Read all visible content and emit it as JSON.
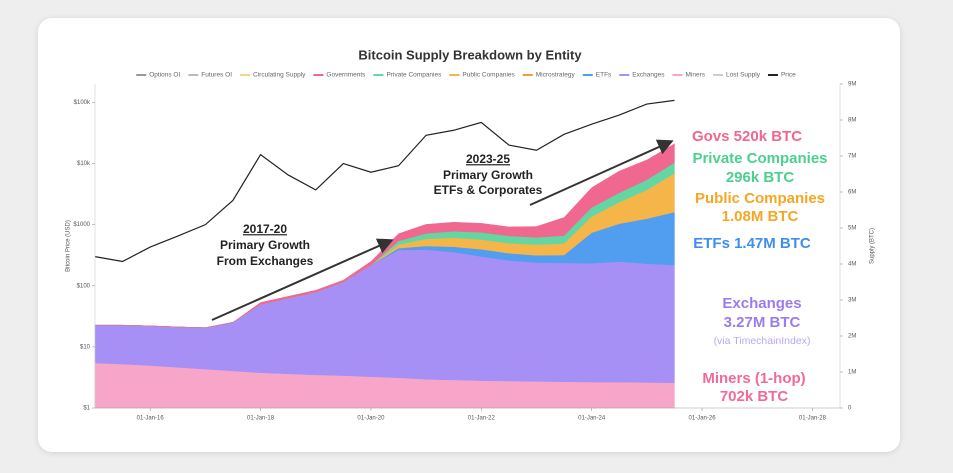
{
  "chart_data": {
    "type": "area",
    "stacked": true,
    "title": "Bitcoin Supply Breakdown by Entity",
    "y_label": "Bitcoin Price (USD)",
    "y2_label": "Supply (BTC)",
    "log_y": true,
    "xlim": [
      2015,
      2028.5
    ],
    "xticks": [
      {
        "value": 2016,
        "label": "01-Jan-16"
      },
      {
        "value": 2018,
        "label": "01-Jan-18"
      },
      {
        "value": 2020,
        "label": "01-Jan-20"
      },
      {
        "value": 2022,
        "label": "01-Jan-22"
      },
      {
        "value": 2024,
        "label": "01-Jan-24"
      },
      {
        "value": 2026,
        "label": "01-Jan-26"
      },
      {
        "value": 2028,
        "label": "01-Jan-28"
      }
    ],
    "ylim": [
      1,
      200000
    ],
    "yticks": [
      {
        "value": 1,
        "label": "$1"
      },
      {
        "value": 10,
        "label": "$10"
      },
      {
        "value": 100,
        "label": "$100"
      },
      {
        "value": 1000,
        "label": "$1000"
      },
      {
        "value": 10000,
        "label": "$10k"
      },
      {
        "value": 100000,
        "label": "$100k"
      }
    ],
    "y2lim": [
      0,
      9000000
    ],
    "y2ticks": [
      0,
      {
        "value": 1000000,
        "label": "1M"
      },
      {
        "value": 2000000,
        "label": "2M"
      },
      {
        "value": 3000000,
        "label": "3M"
      },
      {
        "value": 4000000,
        "label": "4M"
      },
      {
        "value": 5000000,
        "label": "5M"
      },
      {
        "value": 6000000,
        "label": "6M"
      },
      {
        "value": 7000000,
        "label": "7M"
      },
      {
        "value": 8000000,
        "label": "8M"
      },
      {
        "value": 9000000,
        "label": "9M"
      }
    ],
    "x": [
      2015,
      2015.5,
      2016,
      2016.5,
      2017,
      2017.5,
      2018,
      2018.5,
      2019,
      2019.5,
      2020,
      2020.5,
      2021,
      2021.5,
      2022,
      2022.5,
      2023,
      2023.5,
      2024,
      2024.5,
      2025,
      2025.5
    ],
    "series": [
      {
        "name": "Miners",
        "color": "#f7a6c9",
        "axis": "y2",
        "values": [
          1250000,
          1220000,
          1180000,
          1130000,
          1080000,
          1030000,
          980000,
          950000,
          920000,
          900000,
          870000,
          840000,
          800000,
          780000,
          760000,
          750000,
          740000,
          730000,
          720000,
          720000,
          710000,
          702000
        ]
      },
      {
        "name": "Exchanges",
        "color": "#a68ff5",
        "axis": "y2",
        "values": [
          1050000,
          1080000,
          1100000,
          1120000,
          1150000,
          1350000,
          1900000,
          2100000,
          2300000,
          2600000,
          3100000,
          3550000,
          3600000,
          3550000,
          3450000,
          3350000,
          3300000,
          3300000,
          3300000,
          3350000,
          3300000,
          3270000
        ]
      },
      {
        "name": "ETFs",
        "color": "#519df0",
        "axis": "y2",
        "values": [
          0,
          0,
          0,
          0,
          0,
          0,
          0,
          0,
          0,
          0,
          0,
          50000,
          100000,
          150000,
          200000,
          200000,
          200000,
          220000,
          850000,
          1050000,
          1250000,
          1470000
        ]
      },
      {
        "name": "Public Companies",
        "color": "#f5b548",
        "axis": "y2",
        "values": [
          0,
          0,
          0,
          0,
          0,
          0,
          0,
          0,
          0,
          0,
          0,
          100000,
          200000,
          250000,
          270000,
          280000,
          300000,
          320000,
          450000,
          600000,
          800000,
          1080000
        ]
      },
      {
        "name": "Private Companies",
        "color": "#63d6a3",
        "axis": "y2",
        "values": [
          0,
          0,
          0,
          0,
          0,
          0,
          0,
          0,
          0,
          0,
          0,
          100000,
          150000,
          180000,
          200000,
          200000,
          200000,
          220000,
          250000,
          260000,
          280000,
          296000
        ]
      },
      {
        "name": "Governments",
        "color": "#f0678f",
        "axis": "y2",
        "values": [
          0,
          0,
          0,
          0,
          0,
          0,
          50000,
          50000,
          50000,
          50000,
          100000,
          200000,
          250000,
          250000,
          250000,
          250000,
          300000,
          500000,
          550000,
          600000,
          550000,
          520000
        ]
      },
      {
        "name": "Price",
        "color": "#222222",
        "axis": "y",
        "type": "line",
        "values": [
          300,
          250,
          430,
          650,
          1000,
          2500,
          14000,
          6500,
          3700,
          10000,
          7200,
          9200,
          29000,
          35000,
          47000,
          20000,
          16500,
          30000,
          44000,
          62000,
          94000,
          108000
        ]
      }
    ],
    "legend": [
      {
        "name": "Options OI",
        "color": "#999999"
      },
      {
        "name": "Futures OI",
        "color": "#bbbbbb"
      },
      {
        "name": "Circulating Supply",
        "color": "#f5d58a"
      },
      {
        "name": "Governments",
        "color": "#f0678f"
      },
      {
        "name": "Private Companies",
        "color": "#63d6a3"
      },
      {
        "name": "Public Companies",
        "color": "#f5b548"
      },
      {
        "name": "Microstrategy",
        "color": "#f39c33"
      },
      {
        "name": "ETFs",
        "color": "#519df0"
      },
      {
        "name": "Exchanges",
        "color": "#a68ff5"
      },
      {
        "name": "Miners",
        "color": "#f7a6c9"
      },
      {
        "name": "Lost Supply",
        "color": "#cccccc"
      },
      {
        "name": "Price",
        "color": "#222222"
      }
    ],
    "watermark": "timechain",
    "annotations": [
      {
        "text": "2017-20",
        "color": "#222222"
      },
      {
        "text": "Primary Growth",
        "color": "#222222"
      },
      {
        "text": "From Exchanges",
        "color": "#222222"
      },
      {
        "text": "2023-25",
        "color": "#222222"
      },
      {
        "text": "Primary Growth",
        "color": "#222222"
      },
      {
        "text": "ETFs & Corporates",
        "color": "#222222"
      },
      {
        "text": "Govs 520k BTC",
        "color": "#f0678f"
      },
      {
        "text": "Private Companies",
        "color": "#4ccf8f"
      },
      {
        "text": "296k BTC",
        "color": "#4ccf8f"
      },
      {
        "text": "Public Companies",
        "color": "#f5a623"
      },
      {
        "text": "1.08M BTC",
        "color": "#f5a623"
      },
      {
        "text": "ETFs 1.47M BTC",
        "color": "#3d8ef0"
      },
      {
        "text": "Exchanges",
        "color": "#9b7cf0"
      },
      {
        "text": "3.27M BTC",
        "color": "#9b7cf0"
      },
      {
        "text": "(via TimechainIndex)",
        "color": "#b9a8f5"
      },
      {
        "text": "Miners (1-hop)",
        "color": "#f06a9a"
      },
      {
        "text": "702k BTC",
        "color": "#f06a9a"
      }
    ]
  }
}
